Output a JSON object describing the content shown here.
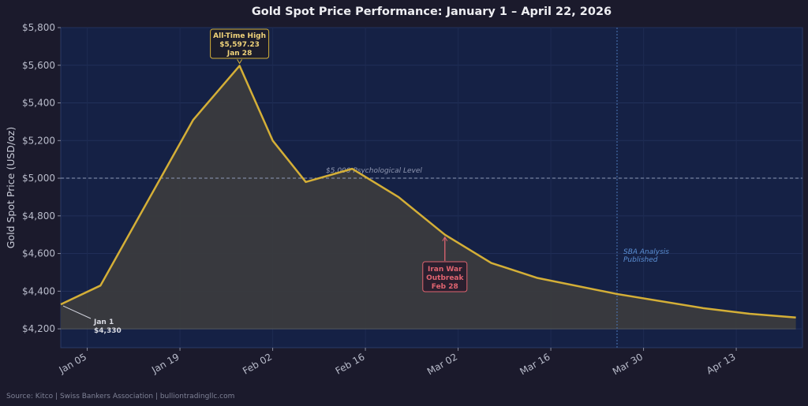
{
  "chart_data": {
    "type": "area",
    "title": "Gold Spot Price Performance: January 1 – April 22, 2026",
    "ylabel": "Gold Spot Price (USD/oz)",
    "xlabel": "",
    "ylim": [
      4100,
      5800
    ],
    "xlim": [
      "2026-01-01",
      "2026-04-23"
    ],
    "y_ticks": [
      "$4,200",
      "$4,400",
      "$4,600",
      "$4,800",
      "$5,000",
      "$5,200",
      "$5,400",
      "$5,600",
      "$5,800"
    ],
    "y_tick_values": [
      4200,
      4400,
      4600,
      4800,
      5000,
      5200,
      5400,
      5600,
      5800
    ],
    "x_ticks": [
      {
        "date": "2026-01-05",
        "label": "Jan 05"
      },
      {
        "date": "2026-01-19",
        "label": "Jan 19"
      },
      {
        "date": "2026-02-02",
        "label": "Feb 02"
      },
      {
        "date": "2026-02-16",
        "label": "Feb 16"
      },
      {
        "date": "2026-03-02",
        "label": "Mar 02"
      },
      {
        "date": "2026-03-16",
        "label": "Mar 16"
      },
      {
        "date": "2026-03-30",
        "label": "Mar 30"
      },
      {
        "date": "2026-04-13",
        "label": "Apr 13"
      }
    ],
    "grid": true,
    "fill_baseline": 4200,
    "series": [
      {
        "x": [
          "2026-01-01",
          "2026-01-07",
          "2026-01-21",
          "2026-01-28",
          "2026-02-02",
          "2026-02-07",
          "2026-02-14",
          "2026-02-21",
          "2026-02-28",
          "2026-03-07",
          "2026-03-14",
          "2026-03-26",
          "2026-04-08",
          "2026-04-15",
          "2026-04-22"
        ],
        "y": [
          4330,
          4430,
          5310,
          5597.23,
          5200,
          4980,
          5050,
          4900,
          4700,
          4550,
          4470,
          4385,
          4310,
          4280,
          4260
        ]
      }
    ],
    "reference_line": {
      "y": 5000,
      "label": "$5,000 Psychological Level"
    },
    "event_line": {
      "date": "2026-03-26",
      "label_lines": [
        "SBA Analysis",
        "Published"
      ]
    },
    "annotations": {
      "ath": {
        "lines": [
          "All-Time High",
          "$5,597.23",
          "Jan 28"
        ],
        "date": "2026-01-28",
        "value": 5597.23
      },
      "war": {
        "lines": [
          "Iran War",
          "Outbreak",
          "Feb 28"
        ],
        "date": "2026-02-28",
        "value": 4700
      },
      "start": {
        "lines": [
          "Jan 1",
          "$4,330"
        ],
        "date": "2026-01-01",
        "value": 4330
      }
    },
    "colors": {
      "background": "#1b1a2c",
      "plot_background": "#152145",
      "line": "#d4af37",
      "fill": "#3a3b3e",
      "war": "#e06470",
      "sba": "#5b8fd4"
    }
  },
  "source": "Source: Kitco | Swiss Bankers Association | bulliontradingllc.com"
}
